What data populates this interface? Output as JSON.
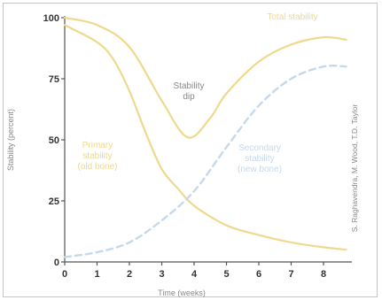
{
  "chart_data": {
    "type": "line",
    "title": "",
    "xlabel": "Time (weeks)",
    "ylabel": "Stability (percent)",
    "xlim": [
      0,
      8.8
    ],
    "ylim": [
      0,
      100
    ],
    "x_ticks": [
      "0",
      "1",
      "2",
      "3",
      "4",
      "5",
      "6",
      "7",
      "8"
    ],
    "y_ticks": [
      "0",
      "25",
      "50",
      "75",
      "100"
    ],
    "grid": false,
    "series": [
      {
        "name": "Total stability",
        "color": "#eed98c",
        "style": "solid",
        "x": [
          0,
          1,
          2,
          3,
          3.8,
          4.5,
          5,
          6,
          7,
          8,
          8.7
        ],
        "y": [
          100,
          97,
          88,
          66,
          51,
          59,
          69,
          82,
          89,
          92,
          91
        ]
      },
      {
        "name": "Primary stability (old bone)",
        "color": "#eed98c",
        "style": "solid",
        "x": [
          0,
          1,
          1.5,
          2,
          2.5,
          3,
          3.5,
          4,
          5,
          6,
          7,
          8,
          8.7
        ],
        "y": [
          97,
          90,
          83,
          70,
          53,
          38,
          30,
          23,
          15,
          11,
          8,
          6,
          5
        ]
      },
      {
        "name": "Secondary stability (new bone)",
        "color": "#c5d9ec",
        "style": "dashed",
        "x": [
          0,
          1,
          2,
          3,
          4,
          5,
          6,
          7,
          8,
          8.7
        ],
        "y": [
          2,
          4,
          8,
          17,
          29,
          47,
          64,
          75,
          80,
          80
        ]
      }
    ],
    "annotations": [
      {
        "text_lines": [
          "Total stability"
        ],
        "color": "#eed98c"
      },
      {
        "text_lines": [
          "Stability",
          "dip"
        ],
        "color": "#888888"
      },
      {
        "text_lines": [
          "Primary",
          "stability",
          "(old bone)"
        ],
        "color": "#eed98c"
      },
      {
        "text_lines": [
          "Secondary",
          "stability",
          "(new bone)"
        ],
        "color": "#c5d9ec"
      }
    ],
    "credit": "S. Raghavendra, M. Wood, T.D. Taylor"
  }
}
